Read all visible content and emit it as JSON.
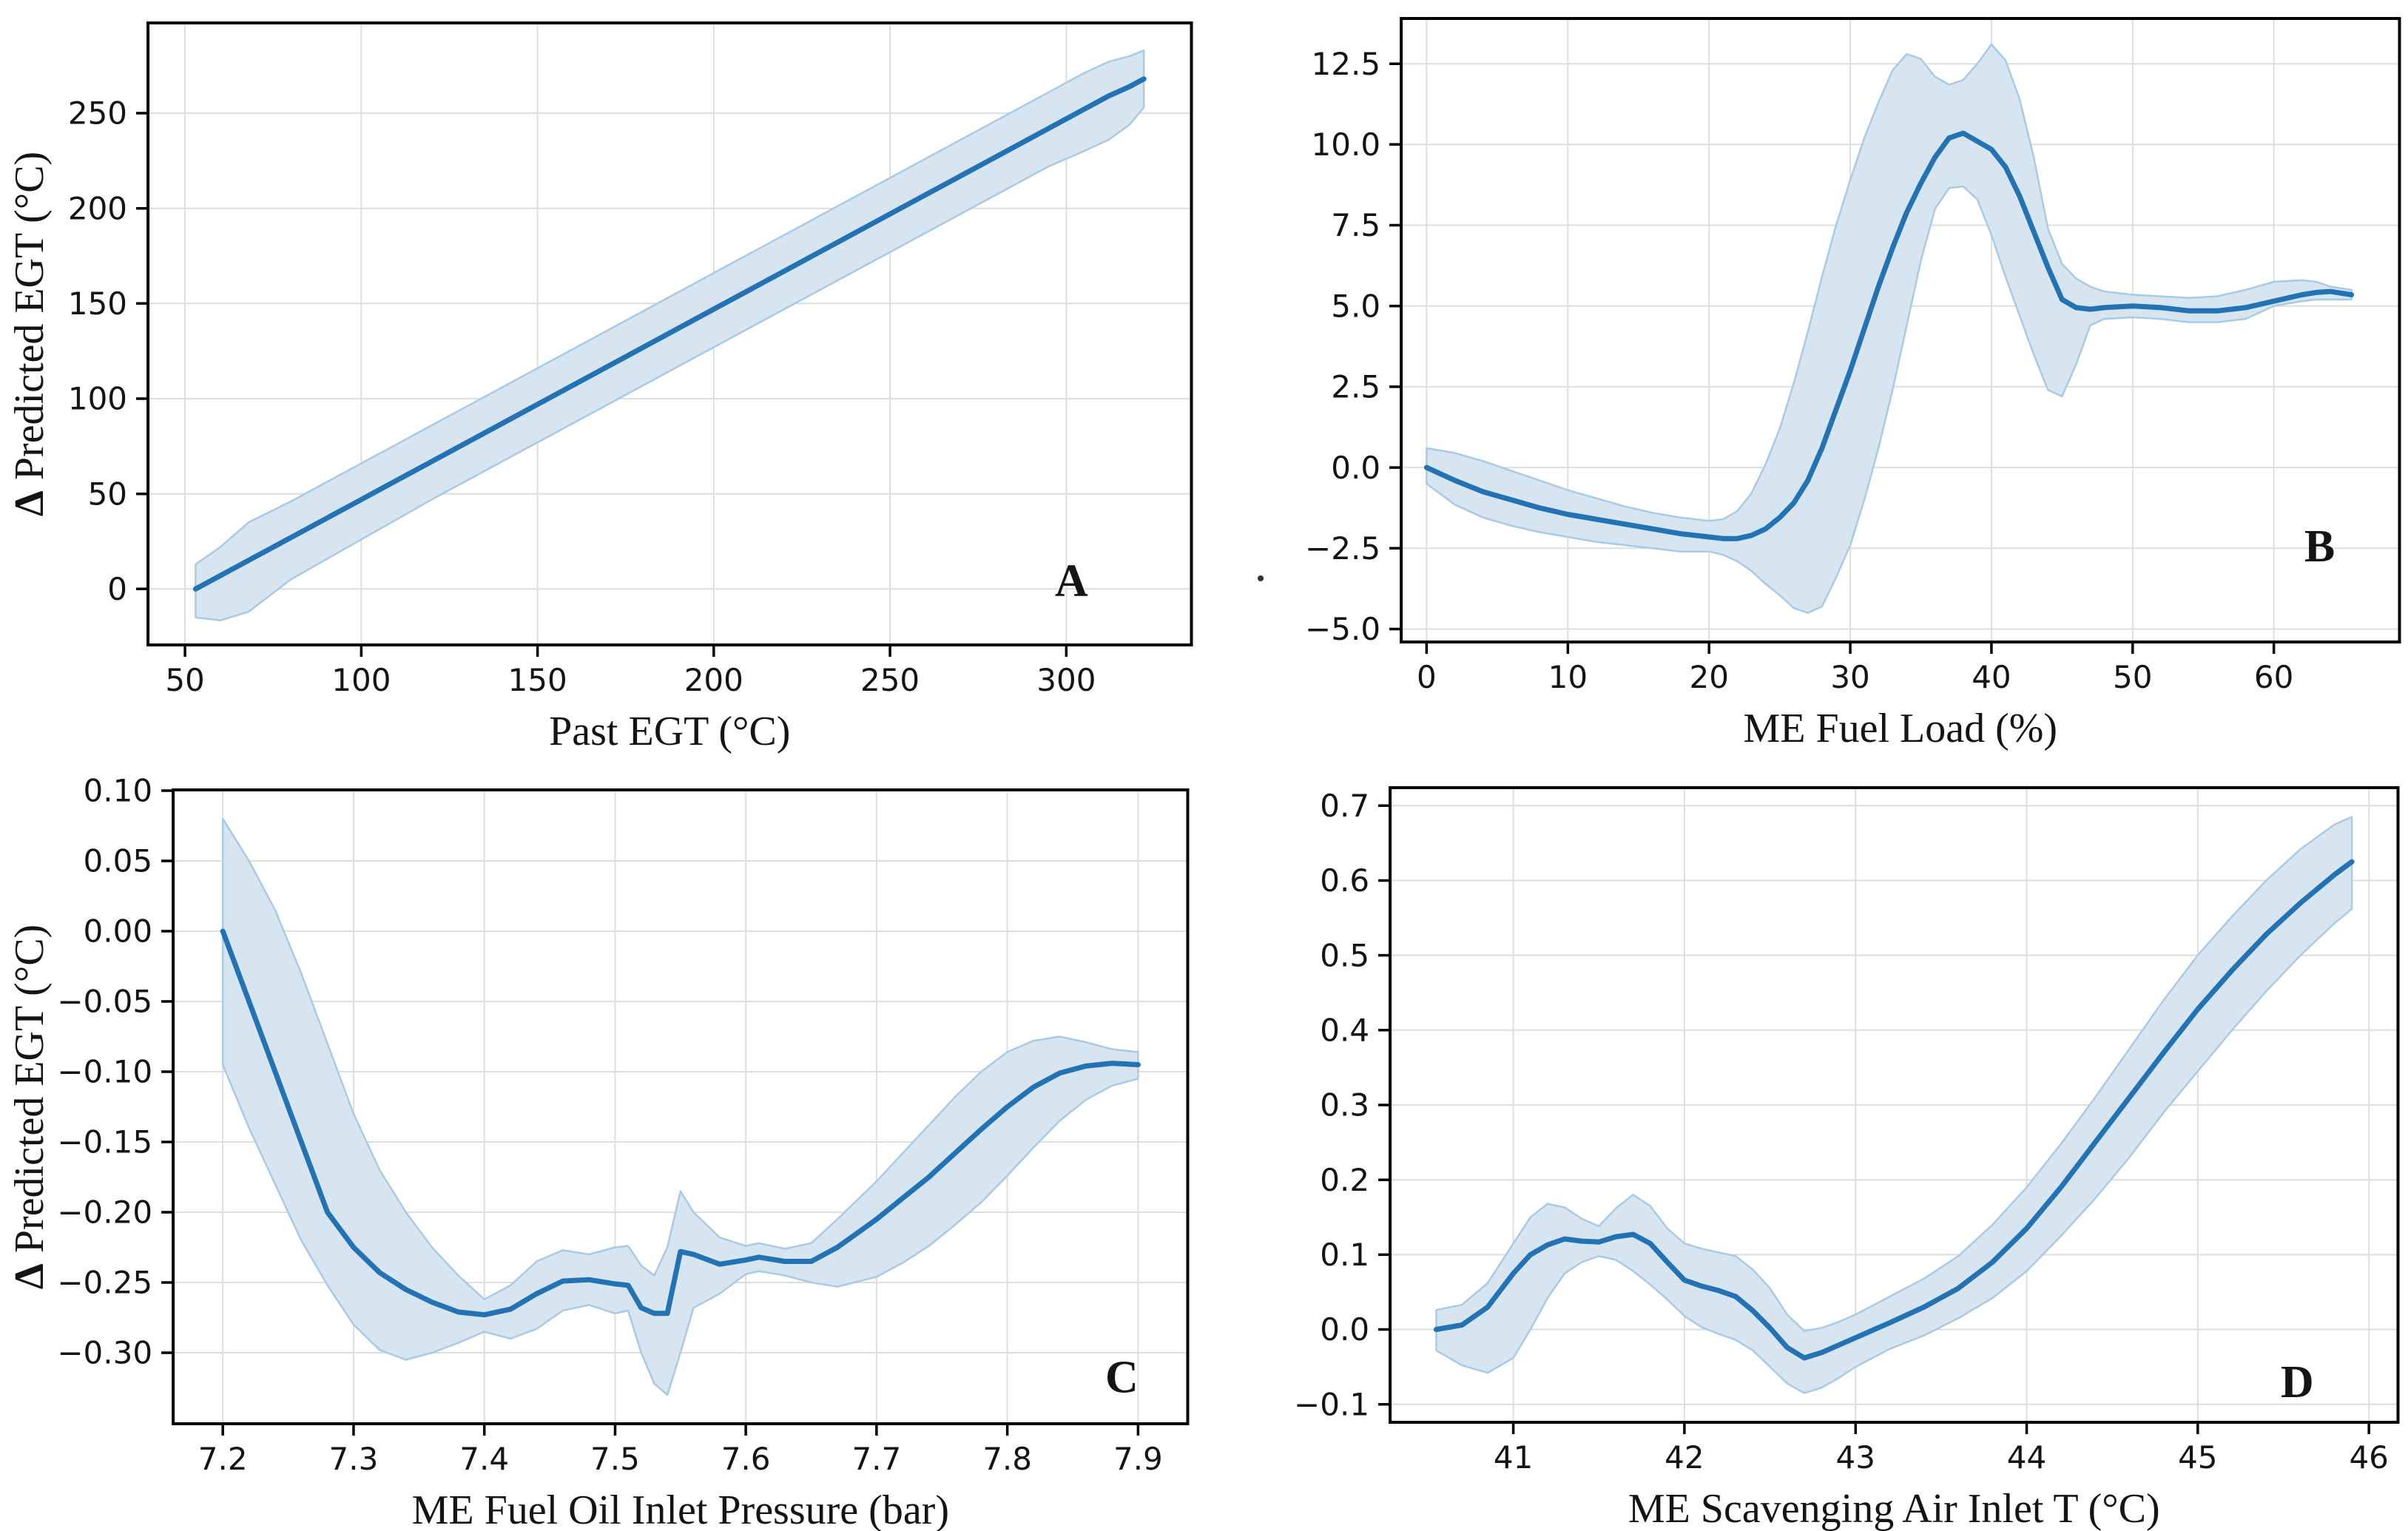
{
  "figure": {
    "kind": "2x2 partial dependence grid",
    "background": "#ffffff"
  },
  "colors": {
    "line": "#2272b4",
    "band_fill": "#d7e5f1",
    "band_edge": "#a9cae4",
    "grid": "#dedede",
    "spine": "#000000",
    "text": "#141414"
  },
  "chart_data": [
    {
      "type": "line",
      "letter": "A",
      "xlabel": "Past EGT (°C)",
      "ylabel": "Δ Predicted EGT (°C)",
      "xlim": [
        39.5,
        335.5
      ],
      "ylim": [
        -29.4,
        297.4
      ],
      "xticks": [
        [
          50,
          "50"
        ],
        [
          100,
          "100"
        ],
        [
          150,
          "150"
        ],
        [
          200,
          "200"
        ],
        [
          250,
          "250"
        ],
        [
          300,
          "300"
        ]
      ],
      "yticks": [
        [
          0,
          "0"
        ],
        [
          50,
          "50"
        ],
        [
          100,
          "100"
        ],
        [
          150,
          "150"
        ],
        [
          200,
          "200"
        ],
        [
          250,
          "250"
        ]
      ],
      "margins": {
        "l": 200,
        "t": 31,
        "r": 1610,
        "b": 872
      },
      "letter_pos": [
        0.885,
        0.895
      ],
      "x": [
        53,
        60,
        68,
        80,
        100,
        120,
        140,
        160,
        180,
        200,
        220,
        240,
        260,
        280,
        295,
        305,
        312,
        318,
        322
      ],
      "y": [
        0,
        7,
        15,
        27,
        47,
        67,
        87,
        107,
        127,
        147,
        167,
        187,
        207,
        227,
        242,
        252,
        259,
        264,
        268
      ],
      "upper": [
        13,
        22,
        35,
        46,
        66,
        86,
        106,
        126,
        146,
        166,
        186,
        206,
        226,
        246,
        261,
        271,
        277,
        280,
        283
      ],
      "lower": [
        -15,
        -16.5,
        -12,
        5,
        26,
        47,
        67,
        87,
        107,
        127,
        147,
        167,
        187,
        207,
        222,
        230,
        236,
        244,
        253
      ]
    },
    {
      "type": "line",
      "letter": "B",
      "xlabel": "ME Fuel Load (%)",
      "ylabel": "",
      "xlim": [
        -1.8,
        68.9
      ],
      "ylim": [
        -5.4,
        13.9
      ],
      "xticks": [
        [
          0,
          "0"
        ],
        [
          10,
          "10"
        ],
        [
          20,
          "20"
        ],
        [
          30,
          "30"
        ],
        [
          40,
          "40"
        ],
        [
          50,
          "50"
        ],
        [
          60,
          "60"
        ]
      ],
      "yticks": [
        [
          -5,
          "−5.0"
        ],
        [
          -2.5,
          "−2.5"
        ],
        [
          0,
          "0.0"
        ],
        [
          2.5,
          "2.5"
        ],
        [
          5,
          "5.0"
        ],
        [
          7.5,
          "7.5"
        ],
        [
          10,
          "10.0"
        ],
        [
          12.5,
          "12.5"
        ]
      ],
      "margins": {
        "l": 266,
        "t": 25,
        "r": 1615,
        "b": 868
      },
      "letter_pos": [
        0.92,
        0.845
      ],
      "stray_dot": {
        "x": 76,
        "y": 782,
        "r": 4
      },
      "x": [
        0,
        2,
        4,
        6,
        8,
        10,
        12,
        14,
        16,
        18,
        20,
        21,
        22,
        23,
        24,
        25,
        26,
        27,
        28,
        29,
        30,
        31,
        32,
        33,
        34,
        35,
        36,
        37,
        38,
        39,
        40,
        41,
        42,
        43,
        44,
        45,
        46,
        47,
        48,
        50,
        52,
        54,
        56,
        58,
        60,
        62,
        63,
        64,
        65.5
      ],
      "y": [
        0,
        -0.4,
        -0.75,
        -1.0,
        -1.25,
        -1.45,
        -1.6,
        -1.75,
        -1.9,
        -2.05,
        -2.15,
        -2.2,
        -2.2,
        -2.1,
        -1.9,
        -1.55,
        -1.1,
        -0.4,
        0.6,
        1.8,
        3.0,
        4.3,
        5.6,
        6.8,
        7.9,
        8.8,
        9.6,
        10.2,
        10.35,
        10.1,
        9.85,
        9.3,
        8.4,
        7.3,
        6.2,
        5.2,
        4.95,
        4.9,
        4.95,
        5.0,
        4.95,
        4.85,
        4.85,
        4.95,
        5.15,
        5.35,
        5.42,
        5.45,
        5.35
      ],
      "upper": [
        0.6,
        0.45,
        0.2,
        -0.1,
        -0.4,
        -0.7,
        -0.95,
        -1.2,
        -1.4,
        -1.55,
        -1.65,
        -1.6,
        -1.35,
        -0.8,
        0.1,
        1.2,
        2.6,
        4.2,
        5.9,
        7.5,
        8.9,
        10.2,
        11.3,
        12.3,
        12.8,
        12.65,
        12.1,
        11.85,
        12.0,
        12.5,
        13.1,
        12.6,
        11.4,
        9.6,
        7.4,
        6.3,
        5.85,
        5.6,
        5.45,
        5.35,
        5.3,
        5.25,
        5.3,
        5.5,
        5.75,
        5.8,
        5.75,
        5.6,
        5.5
      ],
      "lower": [
        -0.5,
        -1.15,
        -1.55,
        -1.8,
        -2.0,
        -2.15,
        -2.3,
        -2.4,
        -2.5,
        -2.6,
        -2.6,
        -2.7,
        -2.9,
        -3.2,
        -3.6,
        -3.95,
        -4.35,
        -4.5,
        -4.3,
        -3.4,
        -2.4,
        -1.0,
        0.6,
        2.4,
        4.4,
        6.4,
        8.0,
        8.65,
        8.7,
        8.3,
        7.2,
        5.9,
        4.7,
        3.5,
        2.4,
        2.2,
        3.2,
        4.4,
        4.6,
        4.65,
        4.6,
        4.5,
        4.5,
        4.6,
        5.0,
        5.15,
        5.2,
        5.2,
        5.2
      ]
    },
    {
      "type": "line",
      "letter": "C",
      "xlabel": "ME Fuel Oil Inlet Pressure (bar)",
      "ylabel": "Δ Predicted EGT (°C)",
      "xlim": [
        7.162,
        7.938
      ],
      "ylim": [
        -0.3505,
        0.1005
      ],
      "xticks": [
        [
          7.2,
          "7.2"
        ],
        [
          7.3,
          "7.3"
        ],
        [
          7.4,
          "7.4"
        ],
        [
          7.5,
          "7.5"
        ],
        [
          7.6,
          "7.6"
        ],
        [
          7.7,
          "7.7"
        ],
        [
          7.8,
          "7.8"
        ],
        [
          7.9,
          "7.9"
        ]
      ],
      "yticks": [
        [
          0.1,
          "0.10"
        ],
        [
          0.05,
          "0.05"
        ],
        [
          0.0,
          "0.00"
        ],
        [
          -0.05,
          "−0.05"
        ],
        [
          -0.1,
          "−0.10"
        ],
        [
          -0.15,
          "−0.15"
        ],
        [
          -0.2,
          "−0.20"
        ],
        [
          -0.25,
          "−0.25"
        ],
        [
          -0.3,
          "−0.30"
        ]
      ],
      "margins": {
        "l": 234,
        "t": 33,
        "r": 1605,
        "b": 890
      },
      "letter_pos": [
        0.935,
        0.925
      ],
      "x": [
        7.2,
        7.22,
        7.24,
        7.26,
        7.28,
        7.3,
        7.32,
        7.34,
        7.36,
        7.38,
        7.4,
        7.42,
        7.44,
        7.46,
        7.48,
        7.5,
        7.51,
        7.52,
        7.53,
        7.54,
        7.55,
        7.56,
        7.58,
        7.6,
        7.61,
        7.63,
        7.65,
        7.67,
        7.7,
        7.72,
        7.74,
        7.76,
        7.78,
        7.8,
        7.82,
        7.84,
        7.86,
        7.88,
        7.9
      ],
      "y": [
        0.0,
        -0.05,
        -0.1,
        -0.15,
        -0.2,
        -0.225,
        -0.243,
        -0.255,
        -0.264,
        -0.271,
        -0.273,
        -0.269,
        -0.258,
        -0.249,
        -0.248,
        -0.251,
        -0.252,
        -0.268,
        -0.272,
        -0.272,
        -0.228,
        -0.23,
        -0.237,
        -0.234,
        -0.232,
        -0.235,
        -0.235,
        -0.225,
        -0.205,
        -0.19,
        -0.175,
        -0.158,
        -0.141,
        -0.125,
        -0.111,
        -0.101,
        -0.096,
        -0.094,
        -0.095
      ],
      "upper": [
        0.08,
        0.05,
        0.015,
        -0.03,
        -0.08,
        -0.13,
        -0.17,
        -0.2,
        -0.225,
        -0.245,
        -0.262,
        -0.252,
        -0.235,
        -0.227,
        -0.23,
        -0.225,
        -0.224,
        -0.238,
        -0.245,
        -0.225,
        -0.185,
        -0.2,
        -0.218,
        -0.224,
        -0.222,
        -0.226,
        -0.222,
        -0.205,
        -0.178,
        -0.158,
        -0.138,
        -0.118,
        -0.1,
        -0.086,
        -0.078,
        -0.075,
        -0.079,
        -0.084,
        -0.086
      ],
      "lower": [
        -0.095,
        -0.14,
        -0.18,
        -0.22,
        -0.252,
        -0.28,
        -0.298,
        -0.305,
        -0.3,
        -0.293,
        -0.285,
        -0.29,
        -0.283,
        -0.27,
        -0.266,
        -0.272,
        -0.27,
        -0.3,
        -0.322,
        -0.33,
        -0.3,
        -0.268,
        -0.258,
        -0.244,
        -0.242,
        -0.245,
        -0.25,
        -0.253,
        -0.246,
        -0.236,
        -0.224,
        -0.209,
        -0.193,
        -0.174,
        -0.154,
        -0.135,
        -0.12,
        -0.11,
        -0.105
      ]
    },
    {
      "type": "line",
      "letter": "D",
      "xlabel": "ME Scavenging Air Inlet T (°C)",
      "ylabel": "",
      "xlim": [
        40.28,
        46.17
      ],
      "ylim": [
        -0.124,
        0.724
      ],
      "xticks": [
        [
          41,
          "41"
        ],
        [
          42,
          "42"
        ],
        [
          43,
          "43"
        ],
        [
          44,
          "44"
        ],
        [
          45,
          "45"
        ],
        [
          46,
          "46"
        ]
      ],
      "yticks": [
        [
          -0.1,
          "−0.1"
        ],
        [
          0.0,
          "0.0"
        ],
        [
          0.1,
          "0.1"
        ],
        [
          0.2,
          "0.2"
        ],
        [
          0.3,
          "0.3"
        ],
        [
          0.4,
          "0.4"
        ],
        [
          0.5,
          "0.5"
        ],
        [
          0.6,
          "0.6"
        ],
        [
          0.7,
          "0.7"
        ]
      ],
      "margins": {
        "l": 251,
        "t": 30,
        "r": 1613,
        "b": 888
      },
      "letter_pos": [
        0.9,
        0.935
      ],
      "x": [
        40.55,
        40.7,
        40.85,
        41.0,
        41.1,
        41.2,
        41.3,
        41.4,
        41.5,
        41.6,
        41.7,
        41.8,
        41.9,
        42.0,
        42.1,
        42.2,
        42.3,
        42.4,
        42.5,
        42.6,
        42.7,
        42.8,
        42.9,
        43.0,
        43.1,
        43.2,
        43.4,
        43.6,
        43.8,
        44.0,
        44.2,
        44.4,
        44.6,
        44.8,
        45.0,
        45.2,
        45.4,
        45.6,
        45.8,
        45.9
      ],
      "y": [
        0.0,
        0.006,
        0.03,
        0.075,
        0.1,
        0.113,
        0.121,
        0.118,
        0.117,
        0.124,
        0.127,
        0.115,
        0.09,
        0.066,
        0.058,
        0.052,
        0.044,
        0.025,
        0.002,
        -0.024,
        -0.038,
        -0.031,
        -0.021,
        -0.011,
        -0.001,
        0.009,
        0.03,
        0.055,
        0.09,
        0.135,
        0.19,
        0.25,
        0.31,
        0.37,
        0.428,
        0.48,
        0.528,
        0.57,
        0.608,
        0.625
      ],
      "upper": [
        0.026,
        0.033,
        0.062,
        0.115,
        0.15,
        0.168,
        0.163,
        0.148,
        0.138,
        0.162,
        0.18,
        0.165,
        0.135,
        0.115,
        0.108,
        0.103,
        0.098,
        0.08,
        0.055,
        0.02,
        -0.002,
        0.002,
        0.01,
        0.02,
        0.032,
        0.044,
        0.068,
        0.098,
        0.14,
        0.19,
        0.248,
        0.31,
        0.375,
        0.44,
        0.5,
        0.552,
        0.6,
        0.642,
        0.675,
        0.685
      ],
      "lower": [
        -0.028,
        -0.048,
        -0.058,
        -0.038,
        0.0,
        0.042,
        0.075,
        0.09,
        0.098,
        0.093,
        0.078,
        0.06,
        0.04,
        0.018,
        0.003,
        -0.006,
        -0.014,
        -0.028,
        -0.05,
        -0.072,
        -0.085,
        -0.078,
        -0.065,
        -0.05,
        -0.038,
        -0.026,
        -0.008,
        0.015,
        0.042,
        0.078,
        0.125,
        0.175,
        0.23,
        0.29,
        0.345,
        0.4,
        0.452,
        0.5,
        0.543,
        0.562
      ]
    }
  ]
}
